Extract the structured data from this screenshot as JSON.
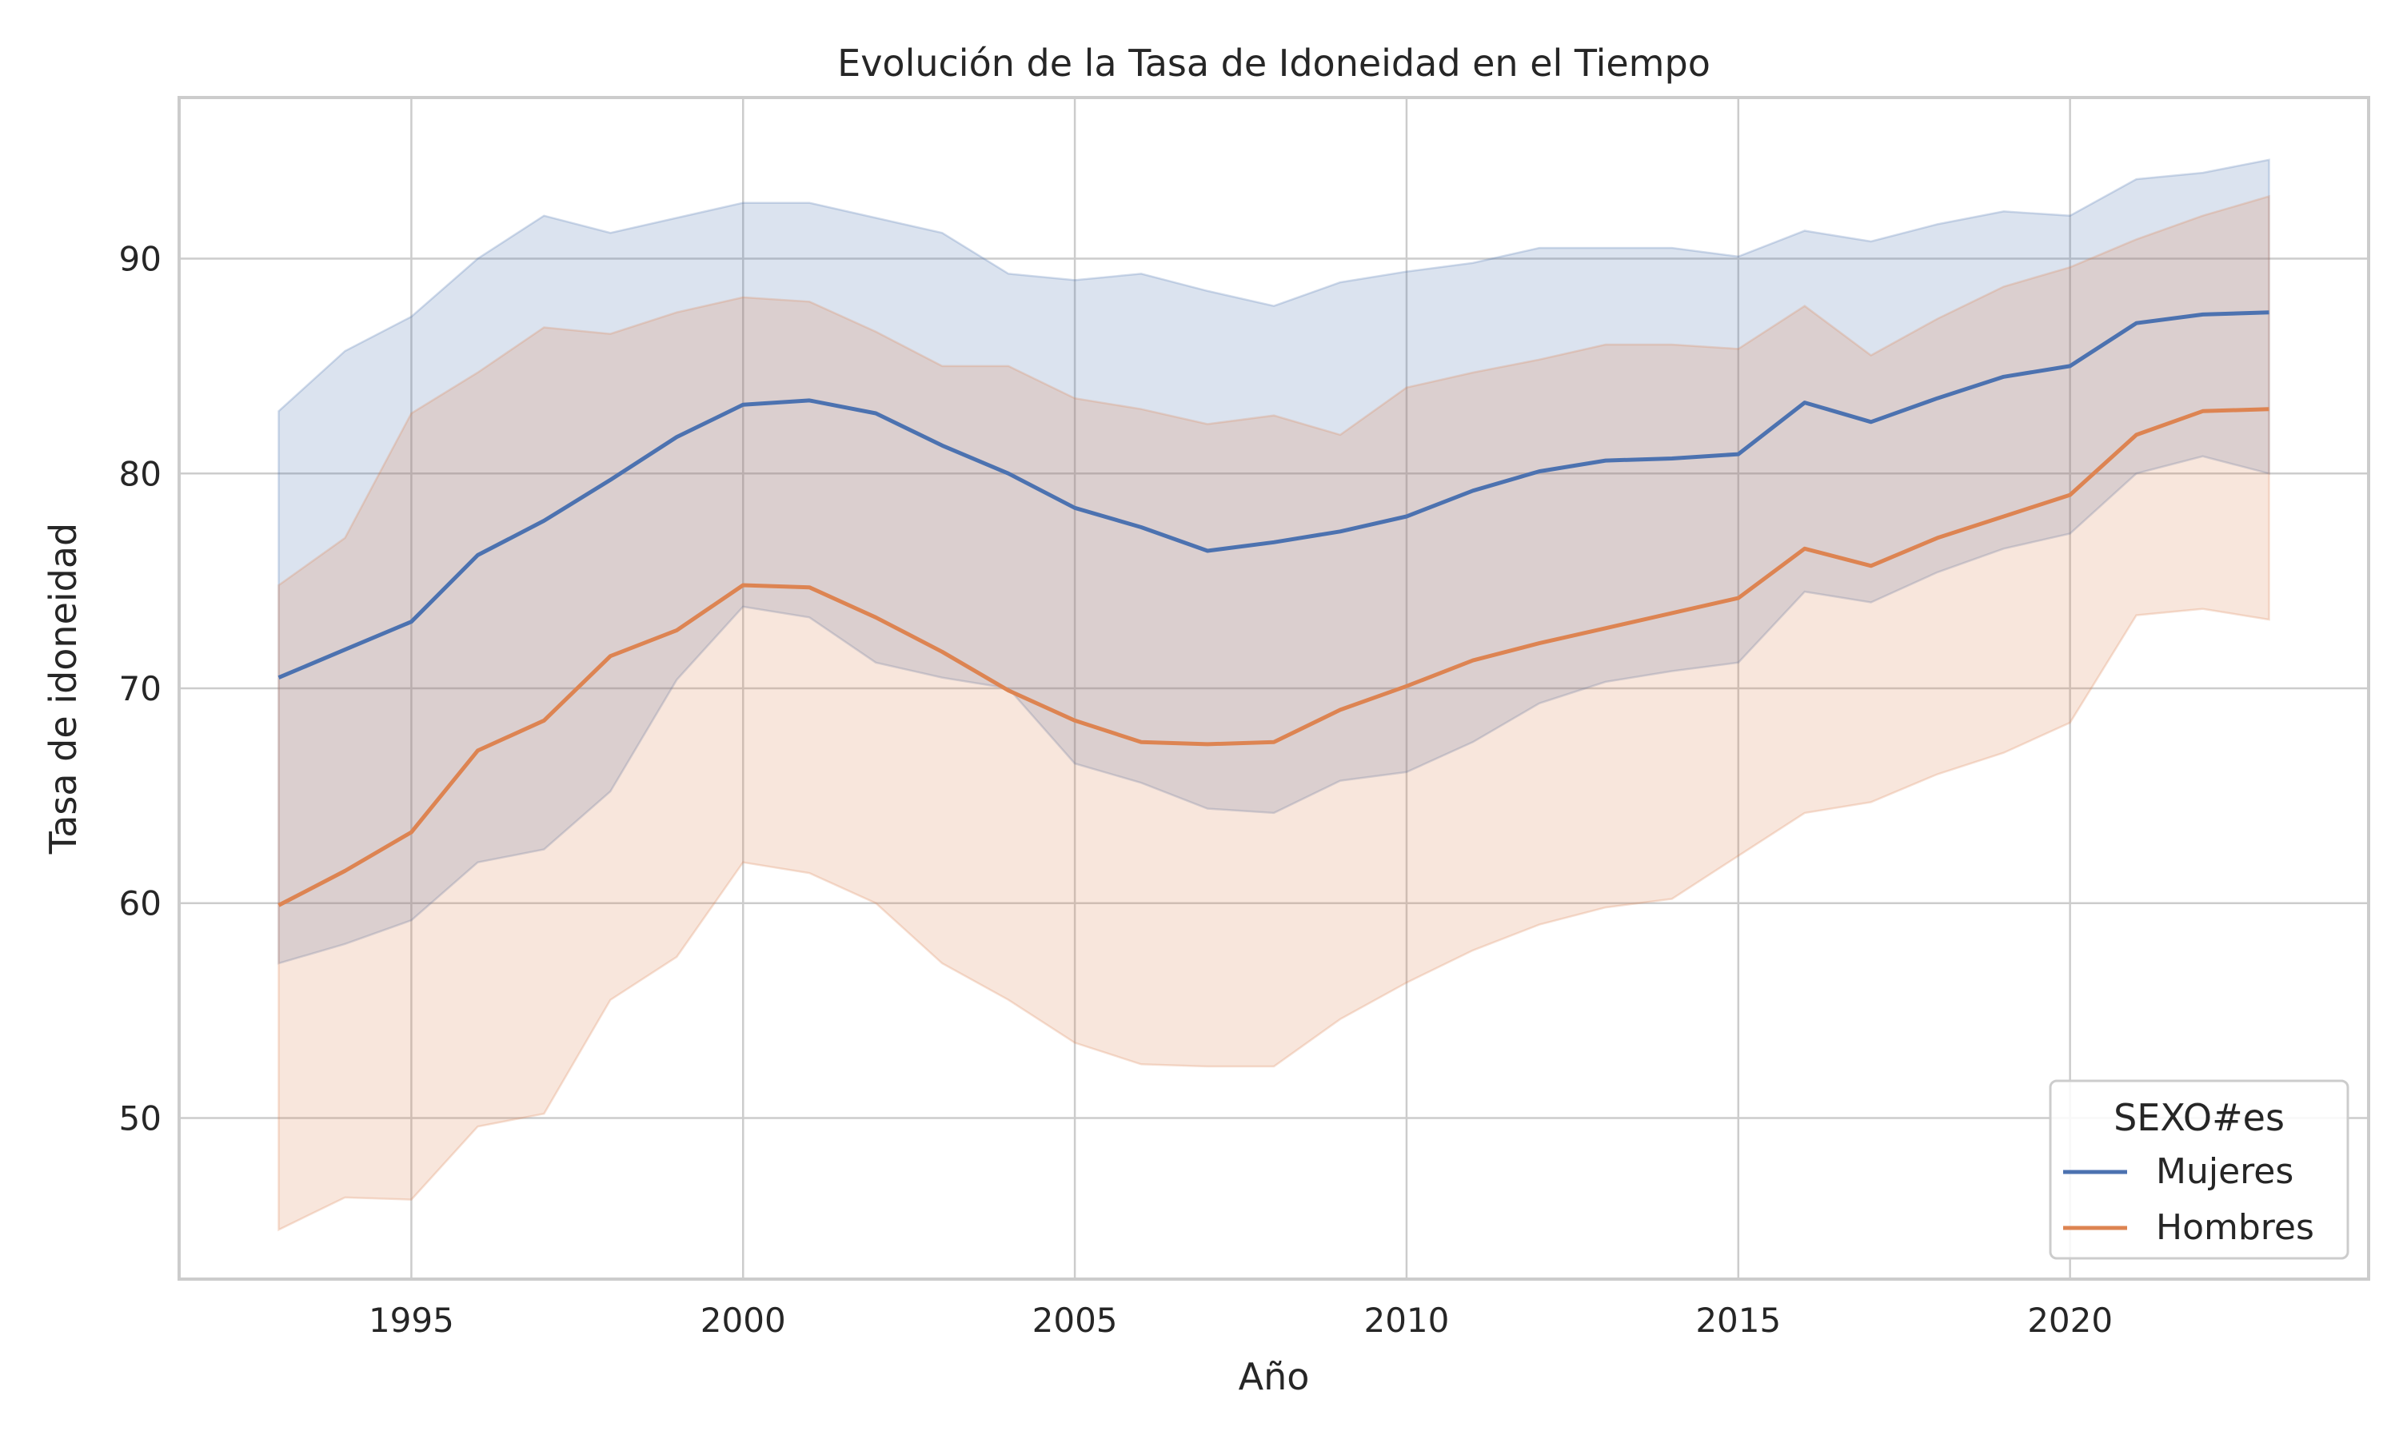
{
  "chart_data": {
    "type": "line",
    "title": "Evolución de la Tasa de Idoneidad en el Tiempo",
    "xlabel": "Año",
    "ylabel": "Tasa de idoneidad",
    "xlim": [
      1991.5,
      2024.5
    ],
    "ylim": [
      42.5,
      97.5
    ],
    "xticks": [
      1995,
      2000,
      2005,
      2010,
      2015,
      2020
    ],
    "yticks": [
      50,
      60,
      70,
      80,
      90
    ],
    "grid": true,
    "legend": {
      "title": "SEXO#es",
      "placement": "lower-right"
    },
    "x": [
      1993,
      1994,
      1995,
      1996,
      1997,
      1998,
      1999,
      2000,
      2001,
      2002,
      2003,
      2004,
      2005,
      2006,
      2007,
      2008,
      2009,
      2010,
      2011,
      2012,
      2013,
      2014,
      2015,
      2016,
      2017,
      2018,
      2019,
      2020,
      2021,
      2022,
      2023
    ],
    "series": [
      {
        "name": "Mujeres",
        "color": "#4c72b0",
        "values": [
          70.5,
          71.8,
          73.1,
          76.2,
          77.8,
          79.7,
          81.7,
          83.2,
          83.4,
          82.8,
          81.3,
          80.0,
          78.4,
          77.5,
          76.4,
          76.8,
          77.3,
          78.0,
          79.2,
          80.1,
          80.6,
          80.7,
          80.9,
          83.3,
          82.4,
          83.5,
          84.5,
          85.0,
          87.0,
          87.4,
          87.5
        ],
        "lower": [
          57.2,
          58.1,
          59.2,
          61.9,
          62.5,
          65.2,
          70.4,
          73.8,
          73.3,
          71.2,
          70.5,
          70.0,
          66.5,
          65.6,
          64.4,
          64.2,
          65.7,
          66.1,
          67.5,
          69.3,
          70.3,
          70.8,
          71.2,
          74.5,
          74.0,
          75.4,
          76.5,
          77.2,
          80.0,
          80.8,
          80.0
        ],
        "upper": [
          82.9,
          85.7,
          87.3,
          90.0,
          92.0,
          91.2,
          91.9,
          92.6,
          92.6,
          91.9,
          91.2,
          89.3,
          89.0,
          89.3,
          88.5,
          87.8,
          88.9,
          89.4,
          89.8,
          90.5,
          90.5,
          90.5,
          90.1,
          91.3,
          90.8,
          91.6,
          92.2,
          92.0,
          93.7,
          94.0,
          94.6
        ]
      },
      {
        "name": "Hombres",
        "color": "#dd8452",
        "values": [
          59.9,
          61.5,
          63.3,
          67.1,
          68.5,
          71.5,
          72.7,
          74.8,
          74.7,
          73.3,
          71.7,
          69.9,
          68.5,
          67.5,
          67.4,
          67.5,
          69.0,
          70.1,
          71.3,
          72.1,
          72.8,
          73.5,
          74.2,
          76.5,
          75.7,
          77.0,
          78.0,
          79.0,
          81.8,
          82.9,
          83.0
        ],
        "lower": [
          44.8,
          46.3,
          46.2,
          49.6,
          50.2,
          55.5,
          57.5,
          61.9,
          61.4,
          60.0,
          57.2,
          55.5,
          53.5,
          52.5,
          52.4,
          52.4,
          54.6,
          56.3,
          57.8,
          59.0,
          59.8,
          60.2,
          62.2,
          64.2,
          64.7,
          66.0,
          67.0,
          68.4,
          73.4,
          73.7,
          73.2
        ],
        "upper": [
          74.8,
          77.0,
          82.8,
          84.7,
          86.8,
          86.5,
          87.5,
          88.2,
          88.0,
          86.6,
          85.0,
          85.0,
          83.5,
          83.0,
          82.3,
          82.7,
          81.8,
          84.0,
          84.7,
          85.3,
          86.0,
          86.0,
          85.8,
          87.8,
          85.5,
          87.2,
          88.7,
          89.6,
          90.9,
          92.0,
          92.9
        ]
      }
    ]
  }
}
